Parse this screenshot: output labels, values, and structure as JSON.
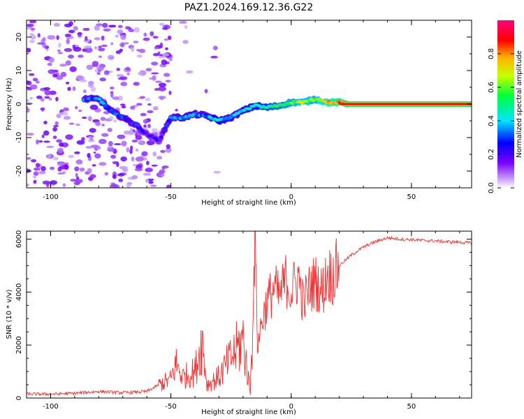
{
  "title": "PAZ1.2024.169.12.36.G22",
  "chart_data": [
    {
      "type": "heatmap",
      "xlabel": "Height of straight line (km)",
      "ylabel": "Frequency (Hz)",
      "xlim": [
        -110,
        75
      ],
      "ylim": [
        -25,
        25
      ],
      "xticks": [
        -100,
        -50,
        0,
        50
      ],
      "yticks": [
        -20,
        -10,
        0,
        10,
        20
      ],
      "grid": false,
      "colorbar": {
        "label": "Normalized spectral amplitude",
        "range": [
          0,
          1
        ],
        "ticks": [
          0.0,
          0.2,
          0.4,
          0.6,
          0.8
        ],
        "colormap": [
          "#ffffff",
          "#c9a6ff",
          "#7b00ff",
          "#0000ff",
          "#00e5ff",
          "#00ff3c",
          "#c8ff00",
          "#ffb000",
          "#ff0000",
          "#ff0080"
        ]
      },
      "ridge_frequency": {
        "x": [
          -85,
          -80,
          -75,
          -70,
          -65,
          -60,
          -55,
          -50,
          -45,
          -40,
          -35,
          -30,
          -25,
          -20,
          -15,
          -10,
          -5,
          0,
          5,
          10,
          15,
          20,
          25,
          30,
          40,
          50,
          60,
          75
        ],
        "y": [
          1.5,
          1.5,
          -2,
          -4,
          -6,
          -9,
          -11,
          -4,
          -4,
          -3,
          -3.5,
          -5,
          -4,
          -2,
          -0.5,
          -1,
          -0.5,
          0.5,
          0.5,
          1.5,
          0.5,
          0.5,
          0,
          0,
          0,
          0,
          0,
          0
        ]
      },
      "ridge_amplitude": [
        0.3,
        0.35,
        0.3,
        0.3,
        0.25,
        0.2,
        0.2,
        0.3,
        0.35,
        0.35,
        0.3,
        0.45,
        0.35,
        0.4,
        0.45,
        0.5,
        0.55,
        0.6,
        0.65,
        0.6,
        0.75,
        0.8,
        0.9,
        0.9,
        0.9,
        0.9,
        0.9,
        0.9
      ]
    },
    {
      "type": "line",
      "xlabel": "Height of straight line (km)",
      "ylabel": "SNR (10 * v/v)",
      "xlim": [
        -110,
        75
      ],
      "ylim": [
        0,
        6300
      ],
      "xticks": [
        -100,
        -50,
        0,
        50
      ],
      "yticks": [
        0,
        2000,
        4000,
        6000
      ],
      "grid": false,
      "series": [
        {
          "color": "#ee3333",
          "x": [
            -110,
            -100,
            -90,
            -80,
            -70,
            -60,
            -55,
            -50,
            -48,
            -45,
            -40,
            -37,
            -35,
            -30,
            -25,
            -20,
            -17,
            -16,
            -15,
            -14,
            -12,
            -10,
            -7,
            -5,
            -2,
            0,
            3,
            5,
            8,
            10,
            13,
            15,
            17,
            20,
            25,
            30,
            35,
            40,
            45,
            50,
            55,
            60,
            65,
            70,
            75
          ],
          "y": [
            150,
            150,
            180,
            250,
            200,
            250,
            500,
            700,
            1300,
            800,
            1000,
            2200,
            500,
            800,
            1500,
            2200,
            200,
            3000,
            6200,
            2000,
            3000,
            3600,
            4200,
            3800,
            4500,
            4000,
            4600,
            3600,
            4200,
            4400,
            4000,
            4700,
            4600,
            5000,
            5400,
            5700,
            5900,
            6050,
            6000,
            5980,
            5950,
            5930,
            5900,
            5880,
            5850
          ]
        }
      ]
    }
  ]
}
